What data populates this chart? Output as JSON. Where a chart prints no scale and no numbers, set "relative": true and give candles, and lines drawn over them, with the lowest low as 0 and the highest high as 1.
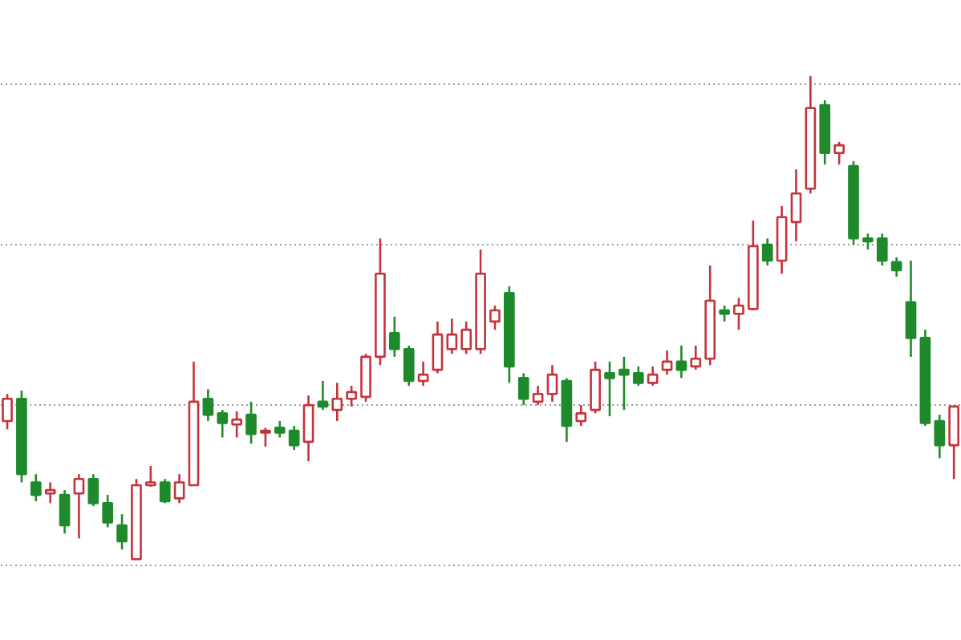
{
  "chart_data": {
    "type": "candlestick",
    "relative": true,
    "grid": "y",
    "categories": [
      null,
      null,
      null,
      null,
      null,
      null,
      null,
      null,
      null,
      null,
      null,
      null,
      null,
      null,
      null,
      null,
      null,
      null,
      null,
      null,
      null,
      null,
      null,
      null,
      null,
      null,
      null,
      null,
      null,
      null,
      null,
      null,
      null,
      null,
      null,
      null,
      null,
      null,
      null,
      null,
      null,
      null,
      null,
      null,
      null,
      null,
      null,
      null,
      null,
      null,
      null,
      null,
      null,
      null,
      null,
      null,
      null,
      null,
      null,
      null,
      null,
      null,
      null,
      null,
      null,
      null,
      null
    ],
    "ohlc": [
      [
        0.286,
        0.342,
        0.269,
        0.332
      ],
      [
        0.332,
        0.349,
        0.159,
        0.176
      ],
      [
        0.159,
        0.176,
        0.12,
        0.133
      ],
      [
        0.136,
        0.159,
        0.116,
        0.143
      ],
      [
        0.133,
        0.143,
        0.053,
        0.07
      ],
      [
        0.136,
        0.176,
        0.043,
        0.166
      ],
      [
        0.166,
        0.176,
        0.11,
        0.116
      ],
      [
        0.116,
        0.133,
        0.066,
        0.076
      ],
      [
        0.07,
        0.093,
        0.02,
        0.037
      ],
      [
        0,
        0.166,
        0,
        0.153
      ],
      [
        0.153,
        0.193,
        0.15,
        0.159
      ],
      [
        0.159,
        0.166,
        0.116,
        0.12
      ],
      [
        0.126,
        0.176,
        0.116,
        0.159
      ],
      [
        0.153,
        0.409,
        0.153,
        0.326
      ],
      [
        0.332,
        0.352,
        0.286,
        0.299
      ],
      [
        0.302,
        0.309,
        0.252,
        0.282
      ],
      [
        0.279,
        0.306,
        0.252,
        0.289
      ],
      [
        0.299,
        0.326,
        0.239,
        0.259
      ],
      [
        0.262,
        0.272,
        0.233,
        0.266
      ],
      [
        0.272,
        0.286,
        0.252,
        0.262
      ],
      [
        0.266,
        0.276,
        0.226,
        0.236
      ],
      [
        0.243,
        0.339,
        0.203,
        0.319
      ],
      [
        0.326,
        0.369,
        0.309,
        0.316
      ],
      [
        0.309,
        0.365,
        0.286,
        0.332
      ],
      [
        0.332,
        0.359,
        0.316,
        0.346
      ],
      [
        0.336,
        0.425,
        0.326,
        0.419
      ],
      [
        0.419,
        0.664,
        0.402,
        0.591
      ],
      [
        0.468,
        0.502,
        0.419,
        0.435
      ],
      [
        0.435,
        0.442,
        0.359,
        0.369
      ],
      [
        0.369,
        0.409,
        0.359,
        0.382
      ],
      [
        0.392,
        0.492,
        0.385,
        0.465
      ],
      [
        0.435,
        0.498,
        0.425,
        0.465
      ],
      [
        0.435,
        0.492,
        0.425,
        0.475
      ],
      [
        0.435,
        0.641,
        0.425,
        0.591
      ],
      [
        0.492,
        0.525,
        0.475,
        0.515
      ],
      [
        0.551,
        0.565,
        0.365,
        0.399
      ],
      [
        0.375,
        0.385,
        0.319,
        0.332
      ],
      [
        0.326,
        0.359,
        0.319,
        0.342
      ],
      [
        0.342,
        0.402,
        0.326,
        0.382
      ],
      [
        0.369,
        0.375,
        0.243,
        0.276
      ],
      [
        0.286,
        0.319,
        0.276,
        0.302
      ],
      [
        0.309,
        0.409,
        0.302,
        0.392
      ],
      [
        0.385,
        0.409,
        0.296,
        0.375
      ],
      [
        0.392,
        0.419,
        0.309,
        0.382
      ],
      [
        0.385,
        0.399,
        0.359,
        0.365
      ],
      [
        0.365,
        0.399,
        0.359,
        0.382
      ],
      [
        0.392,
        0.432,
        0.382,
        0.409
      ],
      [
        0.409,
        0.442,
        0.375,
        0.392
      ],
      [
        0.399,
        0.442,
        0.392,
        0.415
      ],
      [
        0.415,
        0.608,
        0.402,
        0.535
      ],
      [
        0.515,
        0.525,
        0.492,
        0.508
      ],
      [
        0.508,
        0.541,
        0.475,
        0.525
      ],
      [
        0.518,
        0.701,
        0.515,
        0.648
      ],
      [
        0.651,
        0.664,
        0.608,
        0.618
      ],
      [
        0.618,
        0.731,
        0.591,
        0.708
      ],
      [
        0.698,
        0.807,
        0.658,
        0.757
      ],
      [
        0.767,
        1,
        0.757,
        0.934
      ],
      [
        0.94,
        0.95,
        0.817,
        0.841
      ],
      [
        0.841,
        0.864,
        0.817,
        0.857
      ],
      [
        0.814,
        0.824,
        0.651,
        0.664
      ],
      [
        0.664,
        0.674,
        0.641,
        0.658
      ],
      [
        0.664,
        0.674,
        0.608,
        0.618
      ],
      [
        0.615,
        0.625,
        0.585,
        0.598
      ],
      [
        0.532,
        0.618,
        0.419,
        0.458
      ],
      [
        0.458,
        0.475,
        0.276,
        0.282
      ],
      [
        0.286,
        0.299,
        0.209,
        0.236
      ],
      [
        0.236,
        0.316,
        0.166,
        0.316
      ]
    ]
  }
}
